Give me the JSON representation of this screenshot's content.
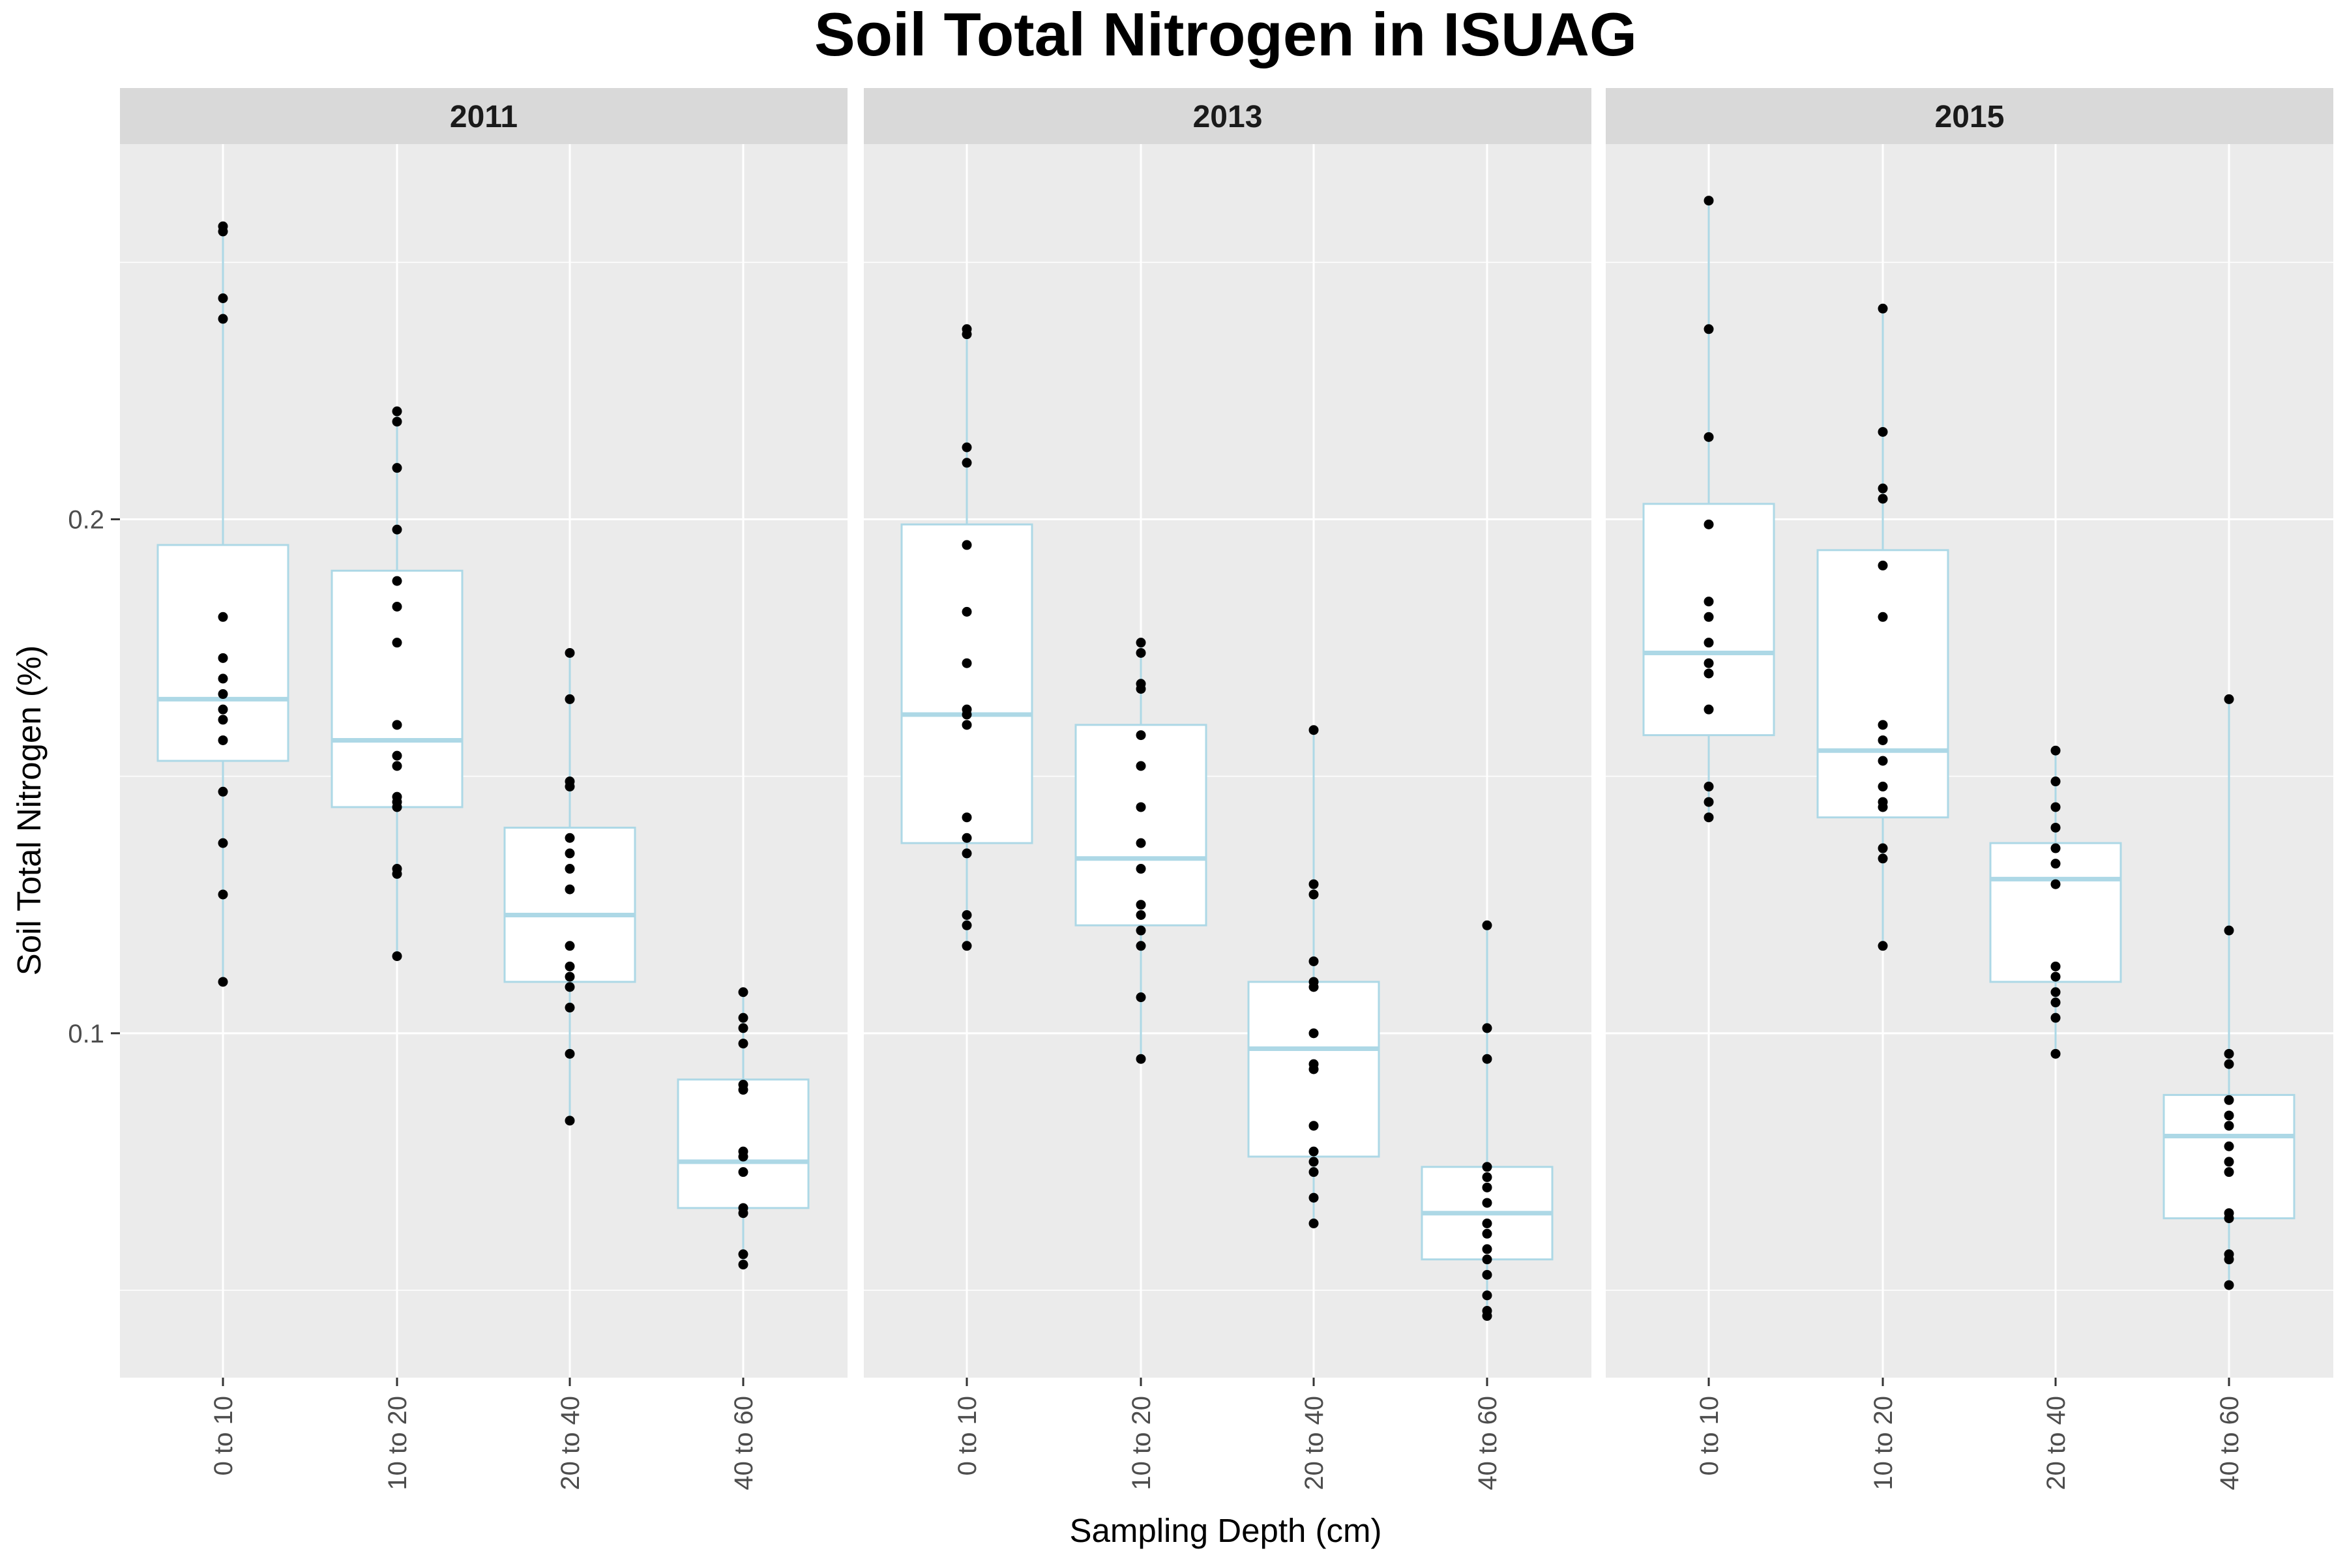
{
  "chart_data": {
    "type": "boxplot",
    "title": "Soil Total Nitrogen in ISUAG",
    "xlabel": "Sampling Depth (cm)",
    "ylabel": "Soil Total Nitrogen (%)",
    "ylim": [
      0.033,
      0.273
    ],
    "yticks": [
      0.1,
      0.2
    ],
    "ytick_labels": [
      "0.1",
      "0.2"
    ],
    "categories": [
      "0 to 10",
      "10 to 20",
      "20 to 40",
      "40 to 60"
    ],
    "grid": true,
    "colors": {
      "panel_background": "#ebebeb",
      "strip_background": "#d9d9d9",
      "grid": "#ffffff",
      "box_outline": "#add8e6",
      "box_fill": "#ffffff",
      "points": "#000000",
      "axis_text": "#4d4d4d"
    },
    "panels": [
      {
        "label": "2011",
        "boxes": [
          {
            "category": "0 to 10",
            "min": 0.11,
            "q1": 0.153,
            "median": 0.165,
            "q3": 0.195,
            "max": 0.257,
            "points": [
              0.257,
              0.256,
              0.243,
              0.239,
              0.181,
              0.173,
              0.169,
              0.166,
              0.163,
              0.161,
              0.157,
              0.147,
              0.137,
              0.127,
              0.11
            ]
          },
          {
            "category": "10 to 20",
            "min": 0.115,
            "q1": 0.144,
            "median": 0.157,
            "q3": 0.19,
            "max": 0.221,
            "points": [
              0.221,
              0.219,
              0.21,
              0.198,
              0.188,
              0.183,
              0.176,
              0.16,
              0.154,
              0.152,
              0.146,
              0.145,
              0.144,
              0.132,
              0.131,
              0.115
            ]
          },
          {
            "category": "20 to 40",
            "min": 0.083,
            "q1": 0.11,
            "median": 0.123,
            "q3": 0.14,
            "max": 0.174,
            "points": [
              0.174,
              0.165,
              0.149,
              0.148,
              0.138,
              0.135,
              0.132,
              0.128,
              0.117,
              0.113,
              0.111,
              0.109,
              0.105,
              0.096,
              0.083
            ]
          },
          {
            "category": "40 to 60",
            "min": 0.055,
            "q1": 0.066,
            "median": 0.075,
            "q3": 0.091,
            "max": 0.108,
            "points": [
              0.108,
              0.103,
              0.101,
              0.098,
              0.09,
              0.089,
              0.077,
              0.076,
              0.073,
              0.066,
              0.065,
              0.057,
              0.055
            ]
          }
        ]
      },
      {
        "label": "2013",
        "boxes": [
          {
            "category": "0 to 10",
            "min": 0.117,
            "q1": 0.137,
            "median": 0.162,
            "q3": 0.199,
            "max": 0.237,
            "points": [
              0.237,
              0.236,
              0.214,
              0.211,
              0.195,
              0.182,
              0.172,
              0.163,
              0.162,
              0.16,
              0.142,
              0.138,
              0.135,
              0.123,
              0.121,
              0.117
            ]
          },
          {
            "category": "10 to 20",
            "min": 0.095,
            "q1": 0.121,
            "median": 0.134,
            "q3": 0.16,
            "max": 0.176,
            "points": [
              0.176,
              0.174,
              0.168,
              0.167,
              0.158,
              0.152,
              0.144,
              0.137,
              0.132,
              0.125,
              0.123,
              0.12,
              0.117,
              0.107,
              0.095
            ]
          },
          {
            "category": "20 to 40",
            "min": 0.063,
            "q1": 0.076,
            "median": 0.097,
            "q3": 0.11,
            "max": 0.159,
            "points": [
              0.159,
              0.129,
              0.127,
              0.114,
              0.11,
              0.109,
              0.1,
              0.094,
              0.093,
              0.082,
              0.077,
              0.075,
              0.073,
              0.068,
              0.063
            ]
          },
          {
            "category": "40 to 60",
            "min": 0.045,
            "q1": 0.056,
            "median": 0.065,
            "q3": 0.074,
            "max": 0.121,
            "points": [
              0.121,
              0.101,
              0.095,
              0.074,
              0.072,
              0.07,
              0.067,
              0.063,
              0.061,
              0.058,
              0.056,
              0.053,
              0.049,
              0.046,
              0.045
            ]
          }
        ]
      },
      {
        "label": "2015",
        "boxes": [
          {
            "category": "0 to 10",
            "min": 0.142,
            "q1": 0.158,
            "median": 0.174,
            "q3": 0.203,
            "max": 0.262,
            "points": [
              0.262,
              0.237,
              0.216,
              0.199,
              0.184,
              0.181,
              0.176,
              0.172,
              0.17,
              0.163,
              0.148,
              0.145,
              0.142
            ]
          },
          {
            "category": "10 to 20",
            "min": 0.117,
            "q1": 0.142,
            "median": 0.155,
            "q3": 0.194,
            "max": 0.241,
            "points": [
              0.241,
              0.217,
              0.206,
              0.204,
              0.191,
              0.181,
              0.16,
              0.157,
              0.153,
              0.148,
              0.145,
              0.144,
              0.136,
              0.134,
              0.117
            ]
          },
          {
            "category": "20 to 40",
            "min": 0.096,
            "q1": 0.11,
            "median": 0.13,
            "q3": 0.137,
            "max": 0.155,
            "points": [
              0.155,
              0.149,
              0.144,
              0.14,
              0.136,
              0.133,
              0.129,
              0.113,
              0.111,
              0.108,
              0.106,
              0.103,
              0.096
            ]
          },
          {
            "category": "40 to 60",
            "min": 0.051,
            "q1": 0.064,
            "median": 0.08,
            "q3": 0.088,
            "max": 0.165,
            "points": [
              0.165,
              0.12,
              0.096,
              0.094,
              0.087,
              0.084,
              0.082,
              0.078,
              0.075,
              0.073,
              0.065,
              0.064,
              0.057,
              0.056,
              0.051
            ]
          }
        ]
      }
    ]
  }
}
